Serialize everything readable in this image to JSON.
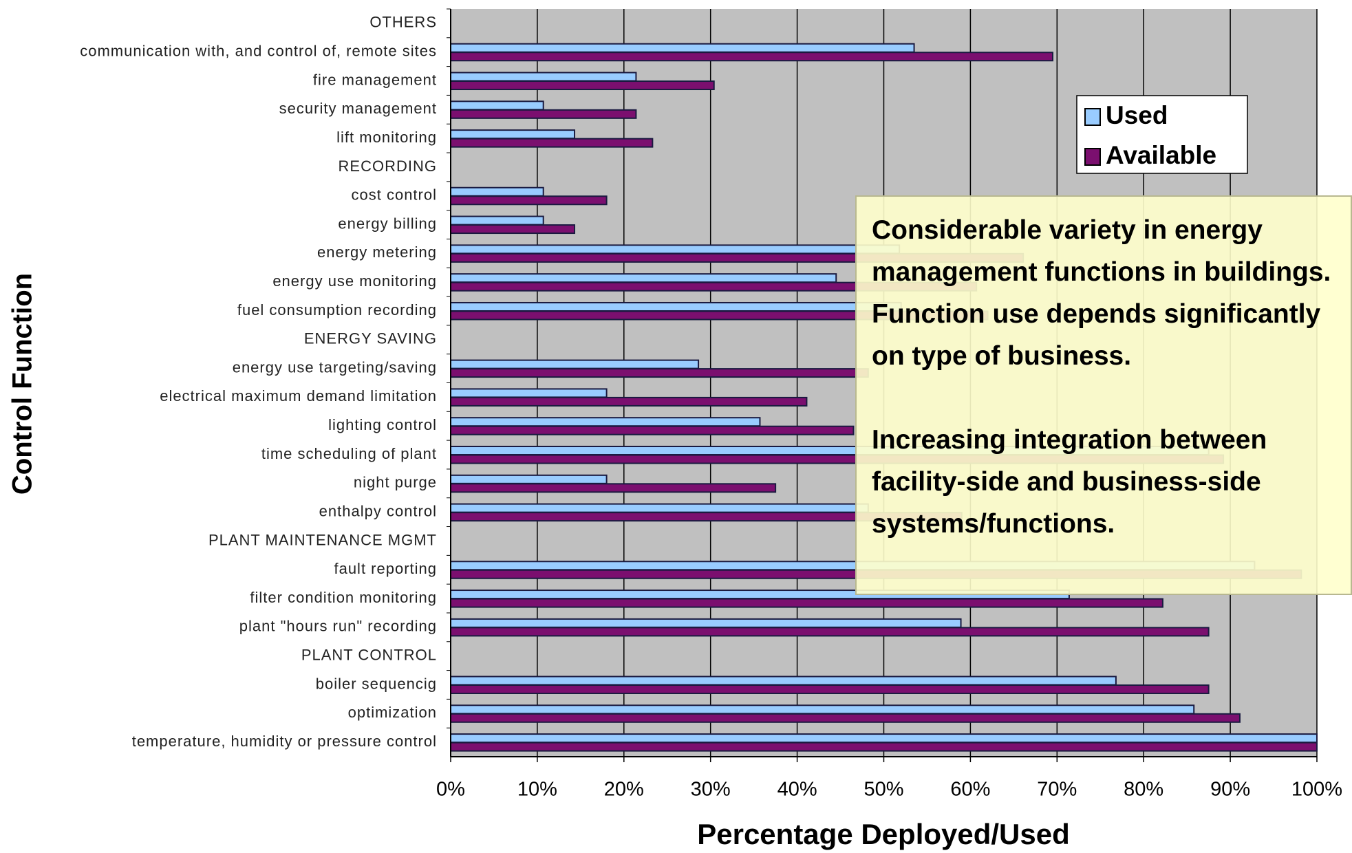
{
  "chart_data": {
    "type": "hbar",
    "xlabel": "Percentage Deployed/Used",
    "ylabel": "Control Function",
    "categories": [
      "OTHERS",
      "communication with, and control of, remote sites",
      "fire management",
      "security management",
      "lift monitoring",
      "RECORDING",
      "cost control",
      "energy billing",
      "energy metering",
      "energy use monitoring",
      "fuel consumption recording",
      "ENERGY SAVING",
      "energy use targeting/saving",
      "electrical maximum demand limitation",
      "lighting control",
      "time scheduling of plant",
      "night purge",
      "enthalpy control",
      "PLANT MAINTENANCE MGMT",
      "fault reporting",
      "filter condition monitoring",
      "plant \"hours run\" recording",
      "PLANT CONTROL",
      "boiler sequencig",
      "optimization",
      "temperature, humidity or pressure control"
    ],
    "series": [
      {
        "name": "Used",
        "color": "#99ccff",
        "values": [
          null,
          53.5,
          21.4,
          10.7,
          14.3,
          null,
          10.7,
          10.7,
          51.8,
          44.5,
          52,
          null,
          28.6,
          18,
          35.7,
          87.5,
          18,
          48.2,
          null,
          92.8,
          71.4,
          58.9,
          null,
          76.8,
          85.8,
          100
        ]
      },
      {
        "name": "Available",
        "color": "#7b0f6f",
        "values": [
          null,
          69.5,
          30.4,
          21.4,
          23.3,
          null,
          18,
          14.3,
          66.1,
          60.7,
          62,
          null,
          48.2,
          41.1,
          46.5,
          89.2,
          37.5,
          59,
          null,
          98.2,
          82.2,
          87.5,
          null,
          87.5,
          91.1,
          100
        ]
      }
    ],
    "xlim": [
      0,
      100
    ],
    "xticks": [
      {
        "value": 0,
        "label": "0%"
      },
      {
        "value": 10,
        "label": "10%"
      },
      {
        "value": 20,
        "label": "20%"
      },
      {
        "value": 30,
        "label": "30%"
      },
      {
        "value": 40,
        "label": "40%"
      },
      {
        "value": 50,
        "label": "50%"
      },
      {
        "value": 60,
        "label": "60%"
      },
      {
        "value": 70,
        "label": "70%"
      },
      {
        "value": 80,
        "label": "80%"
      },
      {
        "value": 90,
        "label": "90%"
      },
      {
        "value": 100,
        "label": "100%"
      }
    ],
    "grid": true,
    "legend": "upper right",
    "annotation": [
      "Considerable variety in energy management functions in buildings. Function use depends significantly on type of business.",
      "Increasing integration between facility-side and business-side systems/functions."
    ]
  }
}
